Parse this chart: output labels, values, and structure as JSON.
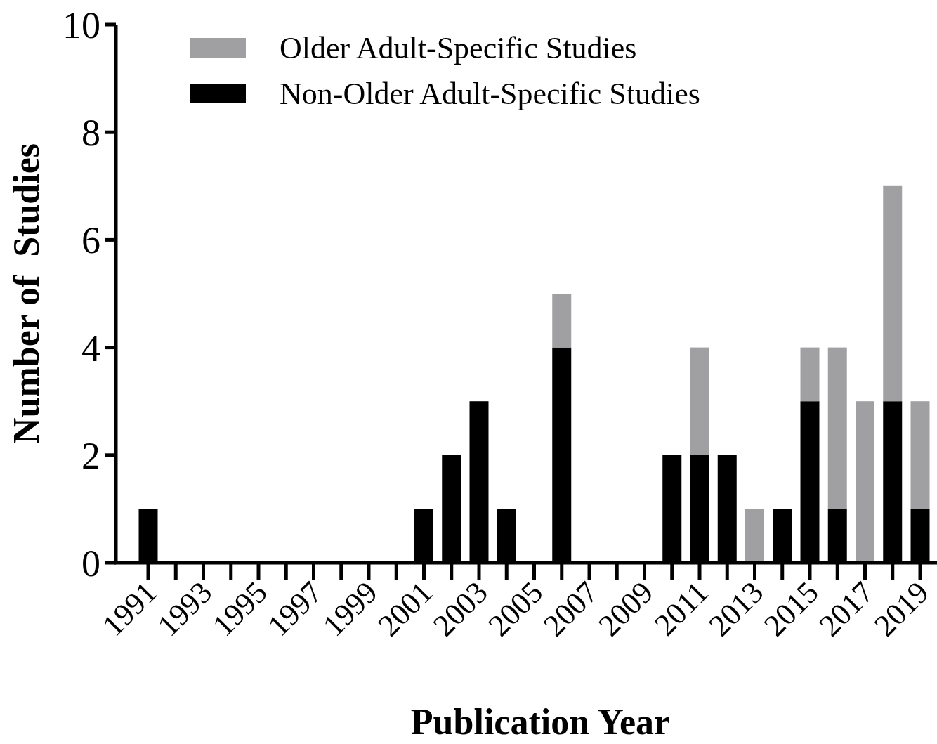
{
  "chart_data": {
    "type": "bar",
    "xlabel": "Publication Year",
    "ylabel": "Number of  Studies",
    "categories": [
      "1991",
      null,
      "1993",
      null,
      "1995",
      null,
      "1997",
      null,
      "1999",
      null,
      "2001",
      null,
      "2003",
      null,
      "2005",
      null,
      "2007",
      null,
      "2009",
      null,
      "2011",
      null,
      "2013",
      null,
      "2015",
      null,
      "2017",
      null,
      "2019"
    ],
    "series": [
      {
        "name": "Non-Older Adult-Specific Studies",
        "color": "#000000",
        "values": [
          1,
          0,
          0,
          0,
          0,
          0,
          0,
          0,
          0,
          0,
          1,
          2,
          3,
          1,
          0,
          4,
          0,
          0,
          0,
          2,
          2,
          2,
          0,
          1,
          3,
          1,
          0,
          3,
          1
        ]
      },
      {
        "name": "Older Adult-Specific Studies",
        "color": "#a0a0a3",
        "values": [
          0,
          0,
          0,
          0,
          0,
          0,
          0,
          0,
          0,
          0,
          0,
          0,
          0,
          0,
          0,
          1,
          0,
          0,
          0,
          0,
          2,
          0,
          1,
          0,
          1,
          3,
          3,
          4,
          2
        ]
      }
    ],
    "stacked": true,
    "ylim": [
      0,
      10
    ],
    "yticks": [
      0,
      2,
      4,
      6,
      8,
      10
    ],
    "grid": false,
    "legend": "top left"
  }
}
